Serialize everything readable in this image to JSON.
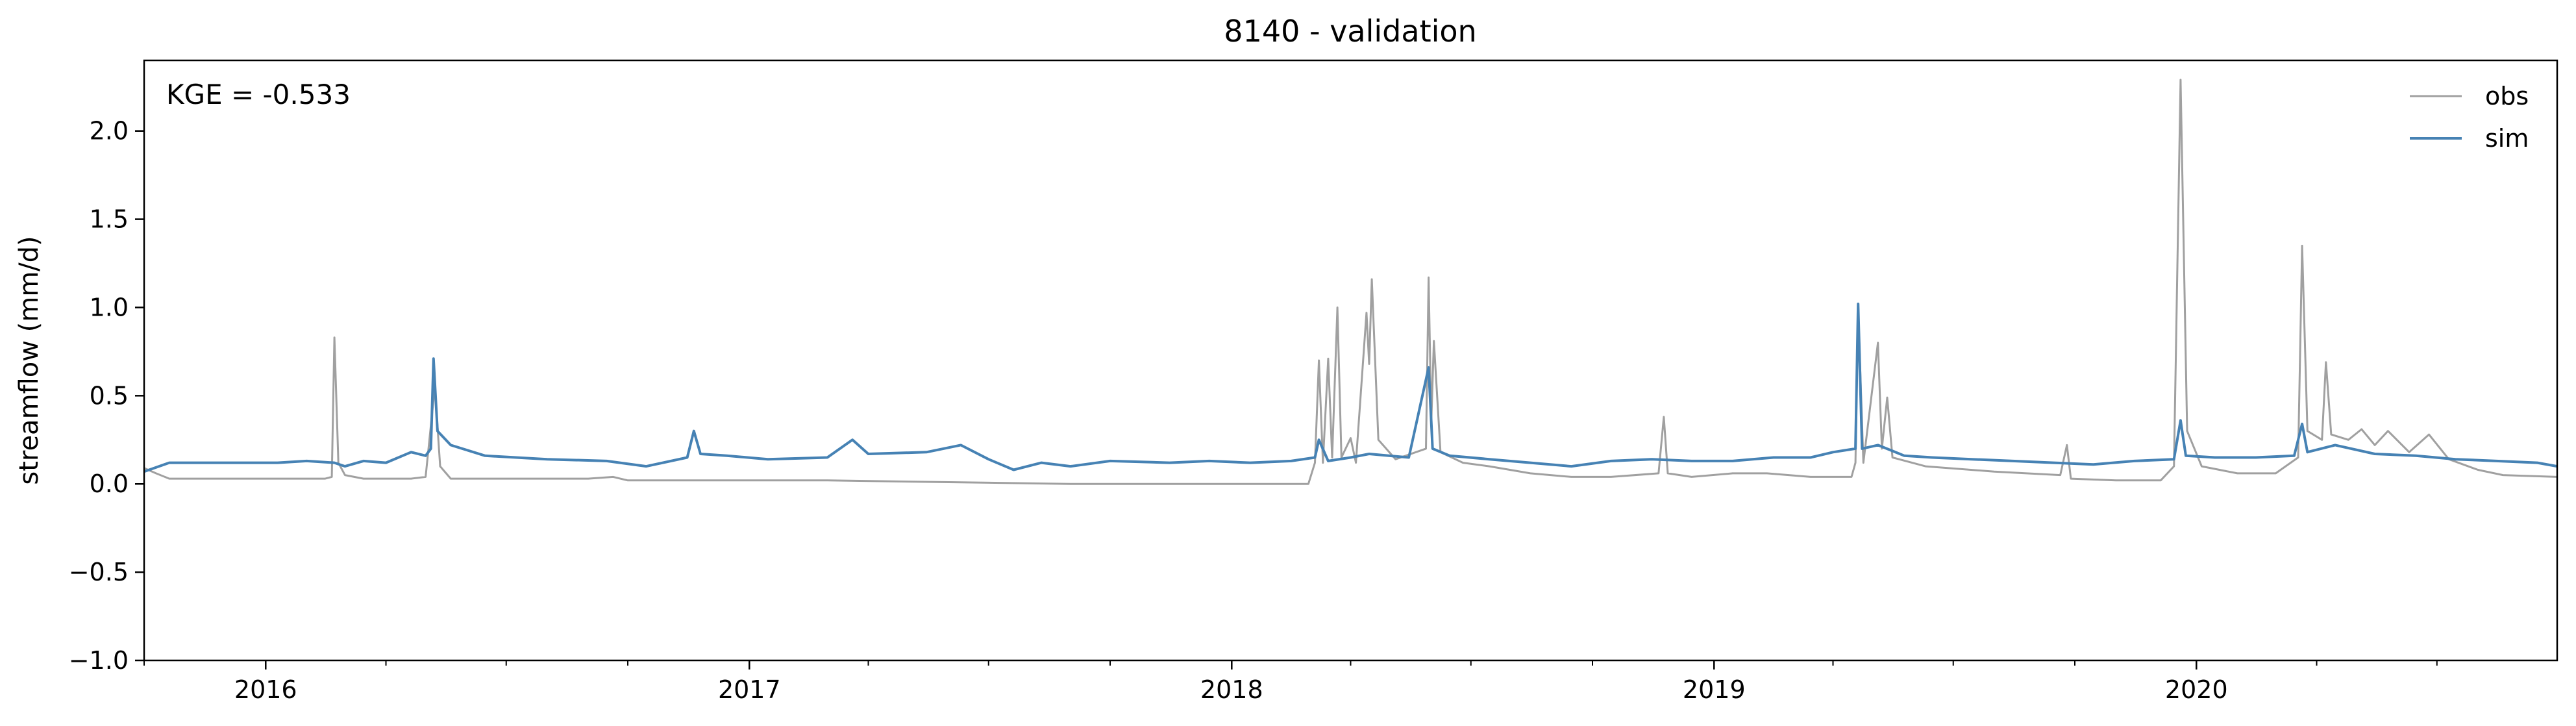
{
  "chart_data": {
    "type": "line",
    "title": "8140 - validation",
    "xlabel": "",
    "ylabel": "streamflow (mm/d)",
    "annotation": "KGE = -0.533",
    "xlim": [
      "2015-10-01",
      "2020-09-30"
    ],
    "ylim": [
      -1.0,
      2.4
    ],
    "yticks": [
      -1.0,
      -0.5,
      0.0,
      0.5,
      1.0,
      1.5,
      2.0
    ],
    "ytick_labels": [
      "−1.0",
      "−0.5",
      "0.0",
      "0.5",
      "1.0",
      "1.5",
      "2.0"
    ],
    "xticks": [
      "2016-01-01",
      "2017-01-01",
      "2018-01-01",
      "2019-01-01",
      "2020-01-01"
    ],
    "xtick_labels": [
      "2016",
      "2017",
      "2018",
      "2019",
      "2020"
    ],
    "grid": false,
    "legend_position": "top-right",
    "series": [
      {
        "name": "obs",
        "color": "#a0a0a0",
        "points": [
          [
            "2015-10-01",
            0.09
          ],
          [
            "2015-10-10",
            0.06
          ],
          [
            "2015-10-20",
            0.03
          ],
          [
            "2015-11-15",
            0.03
          ],
          [
            "2016-01-10",
            0.03
          ],
          [
            "2016-02-15",
            0.03
          ],
          [
            "2016-02-20",
            0.04
          ],
          [
            "2016-02-22",
            0.83
          ],
          [
            "2016-02-25",
            0.12
          ],
          [
            "2016-03-01",
            0.05
          ],
          [
            "2016-03-15",
            0.03
          ],
          [
            "2016-04-01",
            0.03
          ],
          [
            "2016-04-20",
            0.03
          ],
          [
            "2016-05-01",
            0.04
          ],
          [
            "2016-05-08",
            0.55
          ],
          [
            "2016-05-12",
            0.1
          ],
          [
            "2016-05-20",
            0.03
          ],
          [
            "2016-07-01",
            0.03
          ],
          [
            "2016-09-01",
            0.03
          ],
          [
            "2016-09-20",
            0.04
          ],
          [
            "2016-10-01",
            0.02
          ],
          [
            "2016-12-01",
            0.02
          ],
          [
            "2017-03-01",
            0.02
          ],
          [
            "2017-06-01",
            0.01
          ],
          [
            "2017-09-01",
            0.0
          ],
          [
            "2017-12-01",
            0.0
          ],
          [
            "2018-02-28",
            0.0
          ],
          [
            "2018-03-05",
            0.12
          ],
          [
            "2018-03-08",
            0.7
          ],
          [
            "2018-03-11",
            0.12
          ],
          [
            "2018-03-15",
            0.71
          ],
          [
            "2018-03-18",
            0.15
          ],
          [
            "2018-03-22",
            1.0
          ],
          [
            "2018-03-25",
            0.15
          ],
          [
            "2018-04-01",
            0.26
          ],
          [
            "2018-04-05",
            0.12
          ],
          [
            "2018-04-13",
            0.97
          ],
          [
            "2018-04-15",
            0.68
          ],
          [
            "2018-04-17",
            1.16
          ],
          [
            "2018-04-22",
            0.25
          ],
          [
            "2018-05-05",
            0.14
          ],
          [
            "2018-05-28",
            0.2
          ],
          [
            "2018-05-30",
            1.17
          ],
          [
            "2018-06-01",
            0.35
          ],
          [
            "2018-06-03",
            0.81
          ],
          [
            "2018-06-08",
            0.18
          ],
          [
            "2018-06-25",
            0.12
          ],
          [
            "2018-07-15",
            0.1
          ],
          [
            "2018-08-15",
            0.06
          ],
          [
            "2018-09-15",
            0.04
          ],
          [
            "2018-10-15",
            0.04
          ],
          [
            "2018-11-20",
            0.06
          ],
          [
            "2018-11-24",
            0.38
          ],
          [
            "2018-11-27",
            0.06
          ],
          [
            "2018-12-15",
            0.04
          ],
          [
            "2019-01-15",
            0.06
          ],
          [
            "2019-02-10",
            0.06
          ],
          [
            "2019-03-15",
            0.04
          ],
          [
            "2019-04-15",
            0.04
          ],
          [
            "2019-04-18",
            0.12
          ],
          [
            "2019-04-20",
            1.0
          ],
          [
            "2019-04-24",
            0.12
          ],
          [
            "2019-05-05",
            0.8
          ],
          [
            "2019-05-08",
            0.2
          ],
          [
            "2019-05-12",
            0.49
          ],
          [
            "2019-05-16",
            0.15
          ],
          [
            "2019-06-10",
            0.1
          ],
          [
            "2019-08-01",
            0.07
          ],
          [
            "2019-09-20",
            0.05
          ],
          [
            "2019-09-25",
            0.22
          ],
          [
            "2019-09-28",
            0.03
          ],
          [
            "2019-11-01",
            0.02
          ],
          [
            "2019-12-05",
            0.02
          ],
          [
            "2019-12-15",
            0.1
          ],
          [
            "2019-12-20",
            2.29
          ],
          [
            "2019-12-25",
            0.3
          ],
          [
            "2020-01-05",
            0.1
          ],
          [
            "2020-02-01",
            0.06
          ],
          [
            "2020-03-01",
            0.06
          ],
          [
            "2020-03-18",
            0.15
          ],
          [
            "2020-03-21",
            1.35
          ],
          [
            "2020-03-25",
            0.3
          ],
          [
            "2020-04-05",
            0.25
          ],
          [
            "2020-04-08",
            0.69
          ],
          [
            "2020-04-12",
            0.28
          ],
          [
            "2020-04-25",
            0.25
          ],
          [
            "2020-05-05",
            0.31
          ],
          [
            "2020-05-15",
            0.22
          ],
          [
            "2020-05-25",
            0.3
          ],
          [
            "2020-06-10",
            0.18
          ],
          [
            "2020-06-25",
            0.28
          ],
          [
            "2020-07-10",
            0.14
          ],
          [
            "2020-08-01",
            0.08
          ],
          [
            "2020-08-20",
            0.05
          ],
          [
            "2020-09-30",
            0.04
          ]
        ]
      },
      {
        "name": "sim",
        "color": "#4682b4",
        "points": [
          [
            "2015-10-01",
            0.07
          ],
          [
            "2015-10-20",
            0.12
          ],
          [
            "2015-12-01",
            0.12
          ],
          [
            "2016-01-10",
            0.12
          ],
          [
            "2016-02-01",
            0.13
          ],
          [
            "2016-02-22",
            0.12
          ],
          [
            "2016-03-01",
            0.1
          ],
          [
            "2016-03-15",
            0.13
          ],
          [
            "2016-04-01",
            0.12
          ],
          [
            "2016-04-20",
            0.18
          ],
          [
            "2016-05-01",
            0.16
          ],
          [
            "2016-05-05",
            0.2
          ],
          [
            "2016-05-07",
            0.71
          ],
          [
            "2016-05-10",
            0.3
          ],
          [
            "2016-05-20",
            0.22
          ],
          [
            "2016-06-15",
            0.16
          ],
          [
            "2016-08-01",
            0.14
          ],
          [
            "2016-09-15",
            0.13
          ],
          [
            "2016-10-15",
            0.1
          ],
          [
            "2016-11-15",
            0.15
          ],
          [
            "2016-11-20",
            0.3
          ],
          [
            "2016-11-25",
            0.17
          ],
          [
            "2016-12-15",
            0.16
          ],
          [
            "2017-01-15",
            0.14
          ],
          [
            "2017-03-01",
            0.15
          ],
          [
            "2017-03-20",
            0.25
          ],
          [
            "2017-04-01",
            0.17
          ],
          [
            "2017-05-15",
            0.18
          ],
          [
            "2017-06-10",
            0.22
          ],
          [
            "2017-07-01",
            0.14
          ],
          [
            "2017-07-20",
            0.08
          ],
          [
            "2017-08-10",
            0.12
          ],
          [
            "2017-09-01",
            0.1
          ],
          [
            "2017-10-01",
            0.13
          ],
          [
            "2017-11-15",
            0.12
          ],
          [
            "2017-12-15",
            0.13
          ],
          [
            "2018-01-15",
            0.12
          ],
          [
            "2018-02-15",
            0.13
          ],
          [
            "2018-03-05",
            0.15
          ],
          [
            "2018-03-08",
            0.25
          ],
          [
            "2018-03-15",
            0.13
          ],
          [
            "2018-04-01",
            0.15
          ],
          [
            "2018-04-15",
            0.17
          ],
          [
            "2018-05-15",
            0.15
          ],
          [
            "2018-05-30",
            0.66
          ],
          [
            "2018-06-02",
            0.2
          ],
          [
            "2018-06-15",
            0.16
          ],
          [
            "2018-07-15",
            0.14
          ],
          [
            "2018-08-15",
            0.12
          ],
          [
            "2018-09-15",
            0.1
          ],
          [
            "2018-10-15",
            0.13
          ],
          [
            "2018-11-15",
            0.14
          ],
          [
            "2018-12-15",
            0.13
          ],
          [
            "2019-01-15",
            0.13
          ],
          [
            "2019-02-15",
            0.15
          ],
          [
            "2019-03-15",
            0.15
          ],
          [
            "2019-04-01",
            0.18
          ],
          [
            "2019-04-18",
            0.2
          ],
          [
            "2019-04-20",
            1.02
          ],
          [
            "2019-04-23",
            0.2
          ],
          [
            "2019-05-05",
            0.22
          ],
          [
            "2019-05-25",
            0.16
          ],
          [
            "2019-06-15",
            0.15
          ],
          [
            "2019-07-15",
            0.14
          ],
          [
            "2019-08-15",
            0.13
          ],
          [
            "2019-09-15",
            0.12
          ],
          [
            "2019-10-15",
            0.11
          ],
          [
            "2019-11-15",
            0.13
          ],
          [
            "2019-12-15",
            0.14
          ],
          [
            "2019-12-20",
            0.36
          ],
          [
            "2019-12-24",
            0.16
          ],
          [
            "2020-01-15",
            0.15
          ],
          [
            "2020-02-15",
            0.15
          ],
          [
            "2020-03-15",
            0.16
          ],
          [
            "2020-03-21",
            0.34
          ],
          [
            "2020-03-25",
            0.18
          ],
          [
            "2020-04-15",
            0.22
          ],
          [
            "2020-05-15",
            0.17
          ],
          [
            "2020-06-15",
            0.16
          ],
          [
            "2020-07-15",
            0.14
          ],
          [
            "2020-08-15",
            0.13
          ],
          [
            "2020-09-15",
            0.12
          ],
          [
            "2020-09-30",
            0.1
          ]
        ]
      }
    ]
  }
}
